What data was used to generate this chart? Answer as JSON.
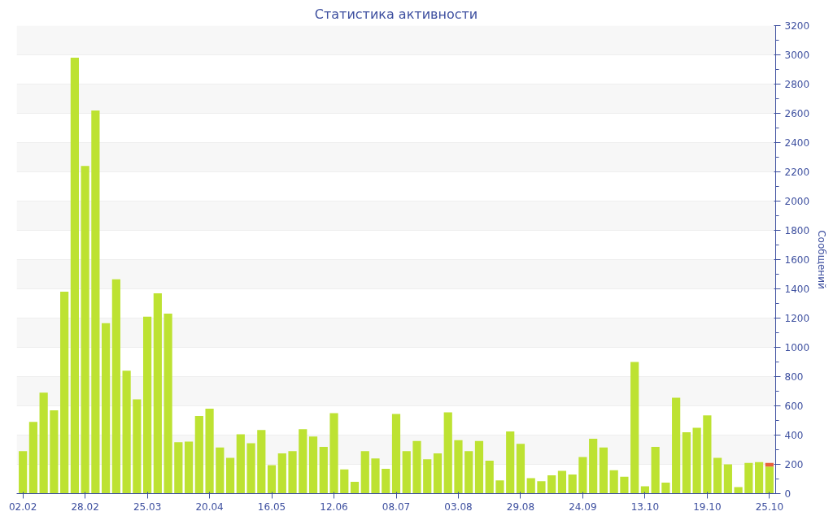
{
  "chart_data": {
    "type": "bar",
    "title": "Статистика активности",
    "ylabel": "Сообщений",
    "categories": [
      "02.02",
      null,
      null,
      null,
      null,
      null,
      "28.02",
      null,
      null,
      null,
      null,
      null,
      "25.03",
      null,
      null,
      null,
      null,
      null,
      "20.04",
      null,
      null,
      null,
      null,
      null,
      "16.05",
      null,
      null,
      null,
      null,
      null,
      "12.06",
      null,
      null,
      null,
      null,
      null,
      "08.07",
      null,
      null,
      null,
      null,
      null,
      "03.08",
      null,
      null,
      null,
      null,
      null,
      "29.08",
      null,
      null,
      null,
      null,
      null,
      "24.09",
      null,
      null,
      null,
      null,
      null,
      "13.10",
      null,
      null,
      null,
      null,
      null,
      "19.10",
      null,
      null,
      null,
      null,
      null,
      "25.10"
    ],
    "series": [
      {
        "color": "#bde232",
        "values": [
          290,
          490,
          690,
          570,
          1380,
          2980,
          2240,
          2620,
          1165,
          1465,
          840,
          645,
          1210,
          1370,
          1230,
          352,
          356,
          530,
          580,
          315,
          245,
          405,
          345,
          435,
          195,
          275,
          290,
          440,
          390,
          320,
          550,
          165,
          80,
          290,
          240,
          170,
          545,
          290,
          360,
          235,
          275,
          555,
          365,
          290,
          360,
          225,
          90,
          425,
          340,
          105,
          85,
          125,
          155,
          130,
          250,
          375,
          315,
          160,
          115,
          900,
          50,
          320,
          75,
          655,
          420,
          450,
          535,
          245,
          200,
          45,
          210,
          215,
          185
        ]
      },
      {
        "color": "#e8603c",
        "values": [
          null,
          null,
          null,
          null,
          null,
          null,
          null,
          null,
          null,
          null,
          null,
          null,
          null,
          null,
          null,
          null,
          null,
          null,
          null,
          null,
          null,
          null,
          null,
          null,
          null,
          null,
          null,
          null,
          null,
          null,
          null,
          null,
          null,
          null,
          null,
          null,
          null,
          null,
          null,
          null,
          null,
          null,
          null,
          null,
          null,
          null,
          null,
          null,
          null,
          null,
          null,
          null,
          null,
          null,
          null,
          null,
          null,
          null,
          null,
          null,
          null,
          null,
          null,
          null,
          null,
          null,
          null,
          null,
          null,
          null,
          null,
          null,
          25
        ]
      }
    ],
    "stacked": true,
    "ylim": [
      0,
      3200
    ],
    "yticks": [
      0,
      200,
      400,
      600,
      800,
      1000,
      1200,
      1400,
      1600,
      1800,
      2000,
      2200,
      2400,
      2600,
      2800,
      3000,
      3200
    ],
    "grid": "y"
  }
}
